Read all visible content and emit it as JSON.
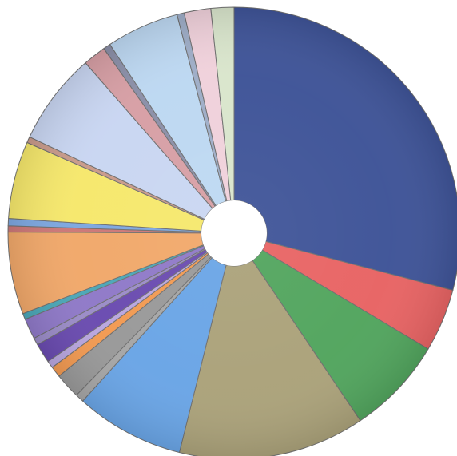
{
  "chart_data": {
    "type": "pie",
    "variant": "donut",
    "title": "",
    "legend": "none",
    "series": [
      {
        "values": [
          33.6,
          5.2,
          8.1,
          15.4,
          9.0,
          0.7,
          2.1,
          0.9,
          0.6,
          1.6,
          0.6,
          1.7,
          0.5,
          6.8,
          0.5,
          0.6,
          6.4,
          0.5,
          7.6,
          1.9,
          0.6,
          6.0,
          0.6,
          2.2,
          1.9
        ],
        "colors": [
          "#3f5498",
          "#e86464",
          "#52a55e",
          "#aba27a",
          "#6aa5e6",
          "#a6a6a6",
          "#999999",
          "#f29a52",
          "#b9a6df",
          "#6a4bb0",
          "#9b8cc8",
          "#8f79c8",
          "#4ba7b7",
          "#f1a86a",
          "#cc7777",
          "#7da7e0",
          "#f6e86c",
          "#c99a8a",
          "#c9d6f2",
          "#d79fa5",
          "#8b8fa8",
          "#bdd8f2",
          "#9eadc7",
          "#f0d1db",
          "#d9e5cc"
        ]
      }
    ]
  }
}
